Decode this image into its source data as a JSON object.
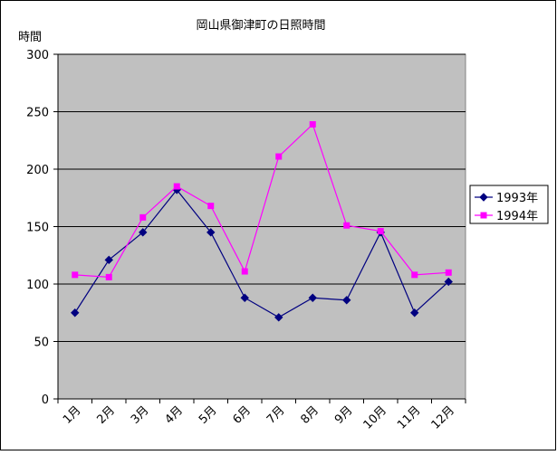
{
  "chart_data": {
    "type": "line",
    "title": "岡山県御津町の日照時間",
    "ylabel": "時間",
    "xlabel": "",
    "categories": [
      "1月",
      "2月",
      "3月",
      "4月",
      "5月",
      "6月",
      "7月",
      "8月",
      "9月",
      "10月",
      "11月",
      "12月"
    ],
    "ylim": [
      0,
      300
    ],
    "yticks": [
      0,
      50,
      100,
      150,
      200,
      250,
      300
    ],
    "grid": true,
    "legend_position": "right",
    "series": [
      {
        "name": "1993年",
        "color": "#000080",
        "marker": "diamond",
        "values": [
          75,
          121,
          145,
          182,
          145,
          88,
          71,
          88,
          86,
          145,
          75,
          102
        ]
      },
      {
        "name": "1994年",
        "color": "#ff00ff",
        "marker": "square",
        "values": [
          108,
          106,
          158,
          185,
          168,
          111,
          211,
          239,
          151,
          146,
          108,
          110
        ]
      }
    ]
  },
  "colors": {
    "plot_background": "#c0c0c0",
    "gridline": "#000000"
  }
}
